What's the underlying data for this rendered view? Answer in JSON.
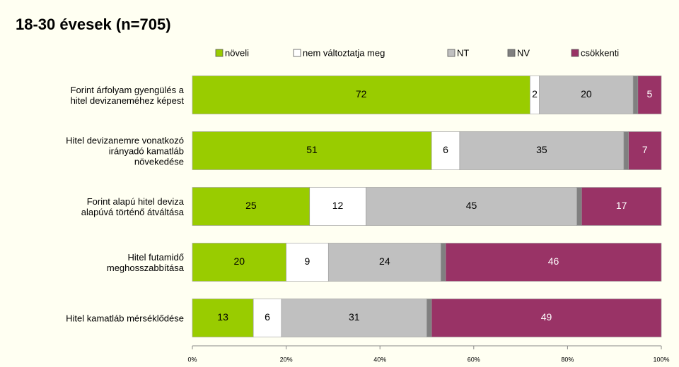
{
  "chart_data": {
    "type": "stacked_barh",
    "title": "18-30 évesek (n=705)",
    "categories": [
      "Forint árfolyam gyengülés a\nhitel devizaneméhez képest",
      "Hitel devizanemre vonatkozó\nirányadó kamatláb\nnövekedése",
      "Forint alapú hitel deviza\nalapúvá történő átváltása",
      "Hitel futamidő\nmeghosszabbítása",
      "Hitel kamatláb mérséklődése"
    ],
    "series": [
      {
        "name": "növeli",
        "color": "#99cc00",
        "values": [
          72,
          51,
          25,
          20,
          13
        ]
      },
      {
        "name": "nem változtatja meg",
        "color": "#ffffff",
        "values": [
          2,
          6,
          12,
          9,
          6
        ]
      },
      {
        "name": "NT",
        "color": "#c0c0c0",
        "values": [
          20,
          35,
          45,
          24,
          31
        ]
      },
      {
        "name": "NV",
        "color": "#808080",
        "values": [
          1,
          1,
          1,
          1,
          1
        ]
      },
      {
        "name": "csökkenti",
        "color": "#993366",
        "values": [
          5,
          7,
          17,
          46,
          49
        ]
      }
    ],
    "xlim": [
      0,
      100
    ],
    "xticks": [
      {
        "value": 0,
        "label": "0%"
      },
      {
        "value": 20,
        "label": "20%"
      },
      {
        "value": 40,
        "label": "40%"
      },
      {
        "value": 60,
        "label": "60%"
      },
      {
        "value": 80,
        "label": "80%"
      },
      {
        "value": 100,
        "label": "100%"
      }
    ],
    "legend": "top"
  }
}
